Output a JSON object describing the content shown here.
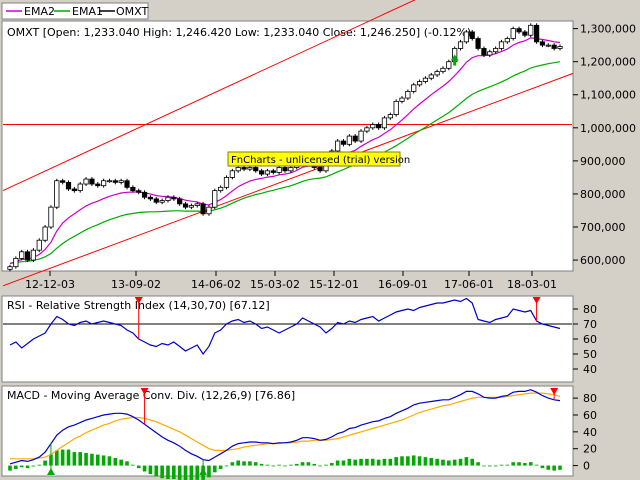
{
  "legend": [
    {
      "label": "EMA2",
      "color": "#cc00cc"
    },
    {
      "label": "EMA1",
      "color": "#00aa00"
    },
    {
      "label": "OMXT",
      "color": "#000000"
    }
  ],
  "main_title": "OMXT [Open: 1,233.040  High: 1,246.420  Low: 1,233.040  Close: 1,246.250] (-0.12%)",
  "watermark": "FnCharts - unlicensed (trial) version",
  "rsi_title": "RSI - Relative Strength Index (14,30,70) [67.12]",
  "macd_title": "MACD - Moving Average Conv. Div. (12,26,9) [76.86]",
  "colors": {
    "plot_bg": "#ffffff",
    "frame_bg": "#d4d0c8",
    "channel": "#ff0000",
    "rsi_line": "#0000cc",
    "macd_line": "#0000cc",
    "signal_line": "#ffaa00",
    "histogram": "#00aa00",
    "sell_arrow": "#ff0000",
    "buy_arrow": "#00aa00",
    "watermark_bg": "#ffff00"
  },
  "chart_data": [
    {
      "type": "candlestick",
      "xlabel": "",
      "ylabel": "",
      "x_ticks": [
        "12-12-03",
        "13-09-02",
        "14-06-02",
        "15-03-02",
        "15-12-01",
        "16-09-01",
        "17-06-01",
        "18-03-01"
      ],
      "y_ticks": [
        "600,000",
        "700,000",
        "800,000",
        "900,000",
        "1,000,000",
        "1,100,000",
        "1,200,000",
        "1,300,000"
      ],
      "ylim": [
        570,
        1320
      ],
      "n_points": 95,
      "close": [
        580,
        605,
        625,
        600,
        630,
        660,
        700,
        760,
        840,
        835,
        815,
        810,
        830,
        845,
        830,
        825,
        840,
        840,
        835,
        840,
        820,
        810,
        805,
        790,
        785,
        775,
        780,
        790,
        785,
        770,
        760,
        765,
        770,
        740,
        760,
        810,
        820,
        850,
        870,
        880,
        875,
        880,
        870,
        860,
        870,
        865,
        880,
        870,
        880,
        900,
        920,
        900,
        880,
        870,
        900,
        930,
        960,
        950,
        975,
        960,
        990,
        1000,
        1010,
        1000,
        1030,
        1040,
        1080,
        1090,
        1110,
        1130,
        1140,
        1150,
        1160,
        1170,
        1180,
        1200,
        1240,
        1260,
        1290,
        1270,
        1240,
        1220,
        1230,
        1240,
        1260,
        1270,
        1300,
        1290,
        1280,
        1310,
        1260,
        1250,
        1250,
        1240,
        1246
      ],
      "ema_fast": [
        590,
        595,
        602,
        602,
        608,
        617,
        632,
        654,
        688,
        712,
        728,
        740,
        752,
        764,
        772,
        778,
        786,
        793,
        798,
        803,
        805,
        806,
        806,
        803,
        800,
        795,
        793,
        792,
        790,
        786,
        781,
        778,
        776,
        769,
        767,
        775,
        783,
        795,
        809,
        822,
        831,
        839,
        844,
        847,
        851,
        853,
        858,
        860,
        864,
        871,
        881,
        884,
        884,
        882,
        885,
        893,
        905,
        914,
        926,
        932,
        944,
        954,
        964,
        971,
        983,
        994,
        1009,
        1024,
        1040,
        1057,
        1072,
        1086,
        1100,
        1113,
        1126,
        1140,
        1158,
        1177,
        1198,
        1212,
        1218,
        1218,
        1220,
        1224,
        1231,
        1238,
        1250,
        1258,
        1263,
        1272,
        1270,
        1267,
        1264,
        1260,
        1258
      ],
      "ema_slow": [
        590,
        592,
        595,
        596,
        599,
        603,
        610,
        620,
        636,
        650,
        662,
        672,
        682,
        692,
        700,
        707,
        715,
        722,
        728,
        734,
        738,
        741,
        744,
        745,
        746,
        746,
        747,
        748,
        749,
        749,
        748,
        748,
        748,
        747,
        748,
        752,
        757,
        764,
        772,
        780,
        787,
        793,
        798,
        802,
        807,
        811,
        816,
        820,
        825,
        831,
        838,
        843,
        846,
        848,
        852,
        859,
        867,
        874,
        882,
        888,
        896,
        904,
        912,
        919,
        927,
        936,
        946,
        957,
        968,
        980,
        991,
        1002,
        1013,
        1024,
        1035,
        1046,
        1060,
        1074,
        1089,
        1101,
        1110,
        1117,
        1124,
        1131,
        1139,
        1147,
        1157,
        1165,
        1172,
        1181,
        1186,
        1190,
        1194,
        1197,
        1200
      ],
      "channel_upper": [
        {
          "x": 0,
          "y": 820
        },
        {
          "x": 94,
          "y": 1590
        }
      ],
      "channel_lower": [
        {
          "x": 0,
          "y": 530
        },
        {
          "x": 94,
          "y": 1150
        }
      ],
      "horizontal_level": 1010
    },
    {
      "type": "line",
      "title": "RSI - Relative Strength Index (14,30,70) [67.12]",
      "y_ticks": [
        "40",
        "50",
        "60",
        "70",
        "80"
      ],
      "ylim": [
        32,
        88
      ],
      "levels": [
        70
      ],
      "values": [
        56,
        58,
        54,
        57,
        60,
        62,
        64,
        70,
        75,
        73,
        70,
        69,
        71,
        72,
        70,
        71,
        72,
        71,
        70,
        69,
        66,
        64,
        60,
        58,
        56,
        55,
        57,
        56,
        58,
        55,
        52,
        54,
        56,
        50,
        55,
        64,
        66,
        70,
        72,
        73,
        71,
        72,
        70,
        67,
        68,
        66,
        64,
        66,
        68,
        70,
        74,
        72,
        70,
        68,
        64,
        67,
        71,
        70,
        72,
        71,
        73,
        74,
        75,
        72,
        74,
        76,
        78,
        79,
        80,
        79,
        81,
        82,
        83,
        84,
        84,
        85,
        86,
        85,
        87,
        84,
        73,
        72,
        71,
        73,
        74,
        75,
        80,
        79,
        78,
        79,
        72,
        70,
        69,
        68,
        67
      ]
    },
    {
      "type": "line",
      "title": "MACD - Moving Average Conv. Div. (12,26,9) [76.86]",
      "y_ticks": [
        "0",
        "20",
        "40",
        "60",
        "80"
      ],
      "ylim": [
        -10,
        92
      ],
      "macd": [
        2,
        4,
        6,
        5,
        7,
        10,
        16,
        26,
        36,
        42,
        46,
        48,
        51,
        54,
        56,
        58,
        60,
        61,
        62,
        62,
        61,
        58,
        54,
        49,
        44,
        39,
        34,
        30,
        27,
        23,
        18,
        14,
        11,
        7,
        6,
        10,
        14,
        18,
        23,
        26,
        27,
        28,
        28,
        27,
        27,
        26,
        27,
        27,
        28,
        30,
        33,
        33,
        32,
        30,
        31,
        34,
        38,
        40,
        44,
        45,
        48,
        50,
        52,
        53,
        56,
        58,
        62,
        65,
        68,
        72,
        74,
        75,
        76,
        77,
        78,
        78,
        81,
        84,
        88,
        88,
        85,
        81,
        80,
        80,
        82,
        83,
        87,
        88,
        88,
        90,
        87,
        83,
        80,
        78,
        77
      ],
      "signal": [
        8,
        8,
        8,
        8,
        8,
        9,
        10,
        13,
        18,
        23,
        27,
        32,
        35,
        39,
        42,
        45,
        48,
        50,
        53,
        55,
        56,
        57,
        57,
        56,
        54,
        52,
        49,
        46,
        43,
        40,
        36,
        32,
        28,
        24,
        20,
        18,
        18,
        18,
        19,
        20,
        22,
        23,
        24,
        25,
        26,
        26,
        26,
        27,
        27,
        28,
        29,
        29,
        30,
        30,
        30,
        31,
        32,
        34,
        36,
        38,
        40,
        42,
        44,
        46,
        48,
        50,
        52,
        54,
        57,
        60,
        63,
        65,
        67,
        69,
        71,
        72,
        74,
        76,
        78,
        80,
        81,
        81,
        81,
        81,
        81,
        82,
        83,
        84,
        85,
        86,
        86,
        86,
        85,
        84,
        82
      ],
      "histogram": [
        -6,
        -4,
        -2,
        -3,
        -1,
        1,
        6,
        13,
        18,
        19,
        19,
        16,
        16,
        15,
        14,
        13,
        12,
        11,
        9,
        7,
        5,
        1,
        -3,
        -7,
        -10,
        -13,
        -15,
        -16,
        -16,
        -17,
        -18,
        -18,
        -17,
        -17,
        -14,
        -8,
        -4,
        0,
        4,
        6,
        5,
        5,
        4,
        2,
        1,
        0,
        1,
        0,
        1,
        2,
        4,
        4,
        2,
        0,
        1,
        3,
        6,
        6,
        8,
        7,
        8,
        8,
        8,
        7,
        8,
        8,
        10,
        11,
        11,
        12,
        11,
        10,
        9,
        8,
        7,
        6,
        7,
        8,
        10,
        8,
        4,
        0,
        -1,
        -1,
        1,
        1,
        4,
        4,
        3,
        4,
        1,
        -3,
        -5,
        -6,
        -5
      ],
      "buy_signals": [
        7,
        33
      ],
      "sell_signals": [
        23,
        93
      ]
    }
  ]
}
